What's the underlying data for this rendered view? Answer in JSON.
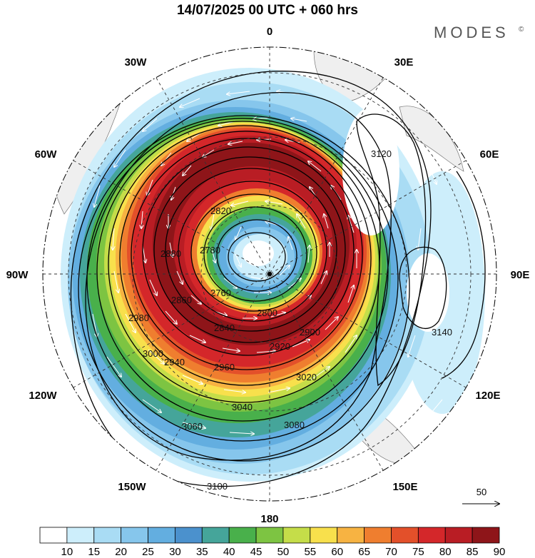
{
  "header": {
    "title": "14/07/2025  00 UTC  + 060 hrs",
    "brand": "MODES",
    "brand_mark": "©"
  },
  "map": {
    "projection": "polar stereographic",
    "hemisphere": "south",
    "longitude_labels": [
      "0",
      "30E",
      "60E",
      "90E",
      "120E",
      "150E",
      "180",
      "150W",
      "120W",
      "90W",
      "60W",
      "30W"
    ],
    "contour_labels": [
      "2760",
      "2780",
      "2800",
      "2820",
      "2840",
      "2860",
      "2880",
      "2900",
      "2920",
      "2940",
      "2960",
      "2980",
      "3000",
      "3020",
      "3040",
      "3060",
      "3080",
      "3100",
      "3120",
      "3140"
    ],
    "vector_reference_label": "50"
  },
  "colorbar": {
    "ticks": [
      "10",
      "15",
      "20",
      "25",
      "30",
      "35",
      "40",
      "45",
      "50",
      "55",
      "60",
      "65",
      "70",
      "75",
      "80",
      "85",
      "90"
    ],
    "colors": [
      "#ffffff",
      "#cdeefb",
      "#a9dcf4",
      "#86c6ec",
      "#63aee0",
      "#4b91cd",
      "#45a59a",
      "#49b04b",
      "#7dc442",
      "#c5dd49",
      "#f8e04c",
      "#f7b342",
      "#ef7e2f",
      "#e3502a",
      "#d4272a",
      "#b91d24",
      "#8e1519"
    ]
  },
  "colors": {
    "land": "#f1f1f1",
    "grid": "#333333",
    "contour": "#000000",
    "vector": "#ffffff"
  }
}
